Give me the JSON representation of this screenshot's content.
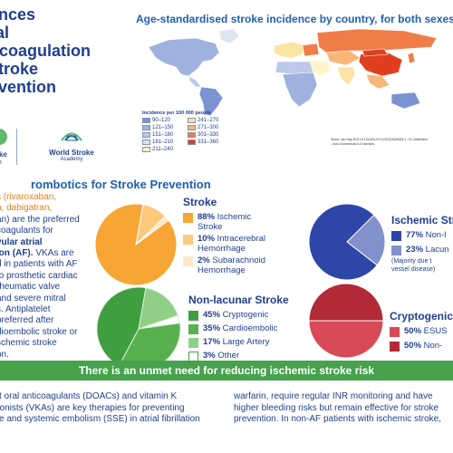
{
  "title_lines": [
    "ances",
    "ral",
    "ticoagulation",
    "stroke",
    "evention"
  ],
  "logos": {
    "left_line1": "oke",
    "left_line2": "on",
    "right_line1": "World Stroke",
    "right_line2": "Academy"
  },
  "map": {
    "title": "Age-standardised stroke incidence by country, for both sexes",
    "legend_title": "Incidence per 100 000 people",
    "legend": [
      {
        "label": "90–120",
        "color": "#7b93d3"
      },
      {
        "label": "121–150",
        "color": "#9fb2df"
      },
      {
        "label": "151–180",
        "color": "#bcc9e8"
      },
      {
        "label": "181–210",
        "color": "#dde3f1"
      },
      {
        "label": "211–240",
        "color": "#fff5c9"
      },
      {
        "label": "241–270",
        "color": "#fde3a1"
      },
      {
        "label": "271–300",
        "color": "#f9b777"
      },
      {
        "label": "301–330",
        "color": "#f07d47"
      },
      {
        "label": "331–360",
        "color": "#df3f1f"
      }
    ],
    "credit_line1": "Simon Jan Hay DOI:10.1016/S1474-4422(16)30024-1, CC Attribution",
    "credit_line2": "- Non-Commercial 4.0 licenses"
  },
  "section_title": "rombotics for Stroke Prevention",
  "left_text": {
    "l1": "s (rivaroxaban,",
    "l2": "n, dabigatran,",
    "l3": "an) are the preferred",
    "l4": "coagulants for",
    "l5": "vular atrial",
    "l6": "ion (AF).",
    "l6b": " VKAs are",
    "l7": "d in patients with AF",
    "l8": "to prosthetic cardiac",
    "l9": "rheumatic valve",
    "l10": "and severe mitral",
    "l11": "s.  Antiplatelet",
    "l12": "preferred after",
    "l13": "dioembolic stroke or",
    "l14": "schemic stroke",
    "l15": "on."
  },
  "pies": {
    "stroke": {
      "title": "Stroke",
      "items": [
        {
          "pct": "88%",
          "label1": "Ischemic",
          "label2": "Stroke",
          "value": 88,
          "color": "#f7a635"
        },
        {
          "pct": "10%",
          "label1": "Intracerebral",
          "label2": "Hemorrhage",
          "value": 10,
          "color": "#fcca7d"
        },
        {
          "pct": "2%",
          "label1": "Subarachnoid",
          "label2": "Hemorrhage",
          "value": 2,
          "color": "#fde8c7"
        }
      ]
    },
    "ischemic": {
      "title": "Ischemic Stro",
      "items": [
        {
          "pct": "77%",
          "label": "Non-l",
          "value": 77,
          "color": "#2e46a8"
        },
        {
          "pct": "23%",
          "label": "Lacun",
          "value": 23,
          "color": "#8290cc"
        }
      ],
      "note1": "(Majority due t",
      "note2": "vessel disease)"
    },
    "nonlacunar": {
      "title": "Non-lacunar Stroke",
      "items": [
        {
          "pct": "45%",
          "label": "Cryptogenic",
          "value": 45,
          "color": "#3f9e3f"
        },
        {
          "pct": "35%",
          "label": "Cardioembolic",
          "value": 35,
          "color": "#56b14e"
        },
        {
          "pct": "17%",
          "label": "Large Artery",
          "value": 17,
          "color": "#8fcf86"
        },
        {
          "pct": "3%",
          "label": "Other",
          "value": 3,
          "color": "#ffffff"
        }
      ]
    },
    "cryptogenic": {
      "title": "Cryptogenic S",
      "items": [
        {
          "pct": "50%",
          "label": "ESUS",
          "value": 50,
          "color": "#d84a56"
        },
        {
          "pct": "50%",
          "label": "Non-",
          "value": 50,
          "color": "#b22a38"
        }
      ]
    }
  },
  "banner": "There is an unmet need for reducing ischemic stroke risk",
  "bottom_left": {
    "l1": "ct oral anticoagulants (DOACs) and vitamin K",
    "l2": "gonists (VKAs) are key therapies for preventing",
    "l3": "ke and systemic embolism (SSE) in atrial fibrillation"
  },
  "bottom_right": {
    "l1": "warfarin, require regular INR monitoring and have",
    "l2": "higher bleeding risks but remain effective for stroke",
    "l3": "prevention. In non-AF patients with ischemic stroke,"
  }
}
